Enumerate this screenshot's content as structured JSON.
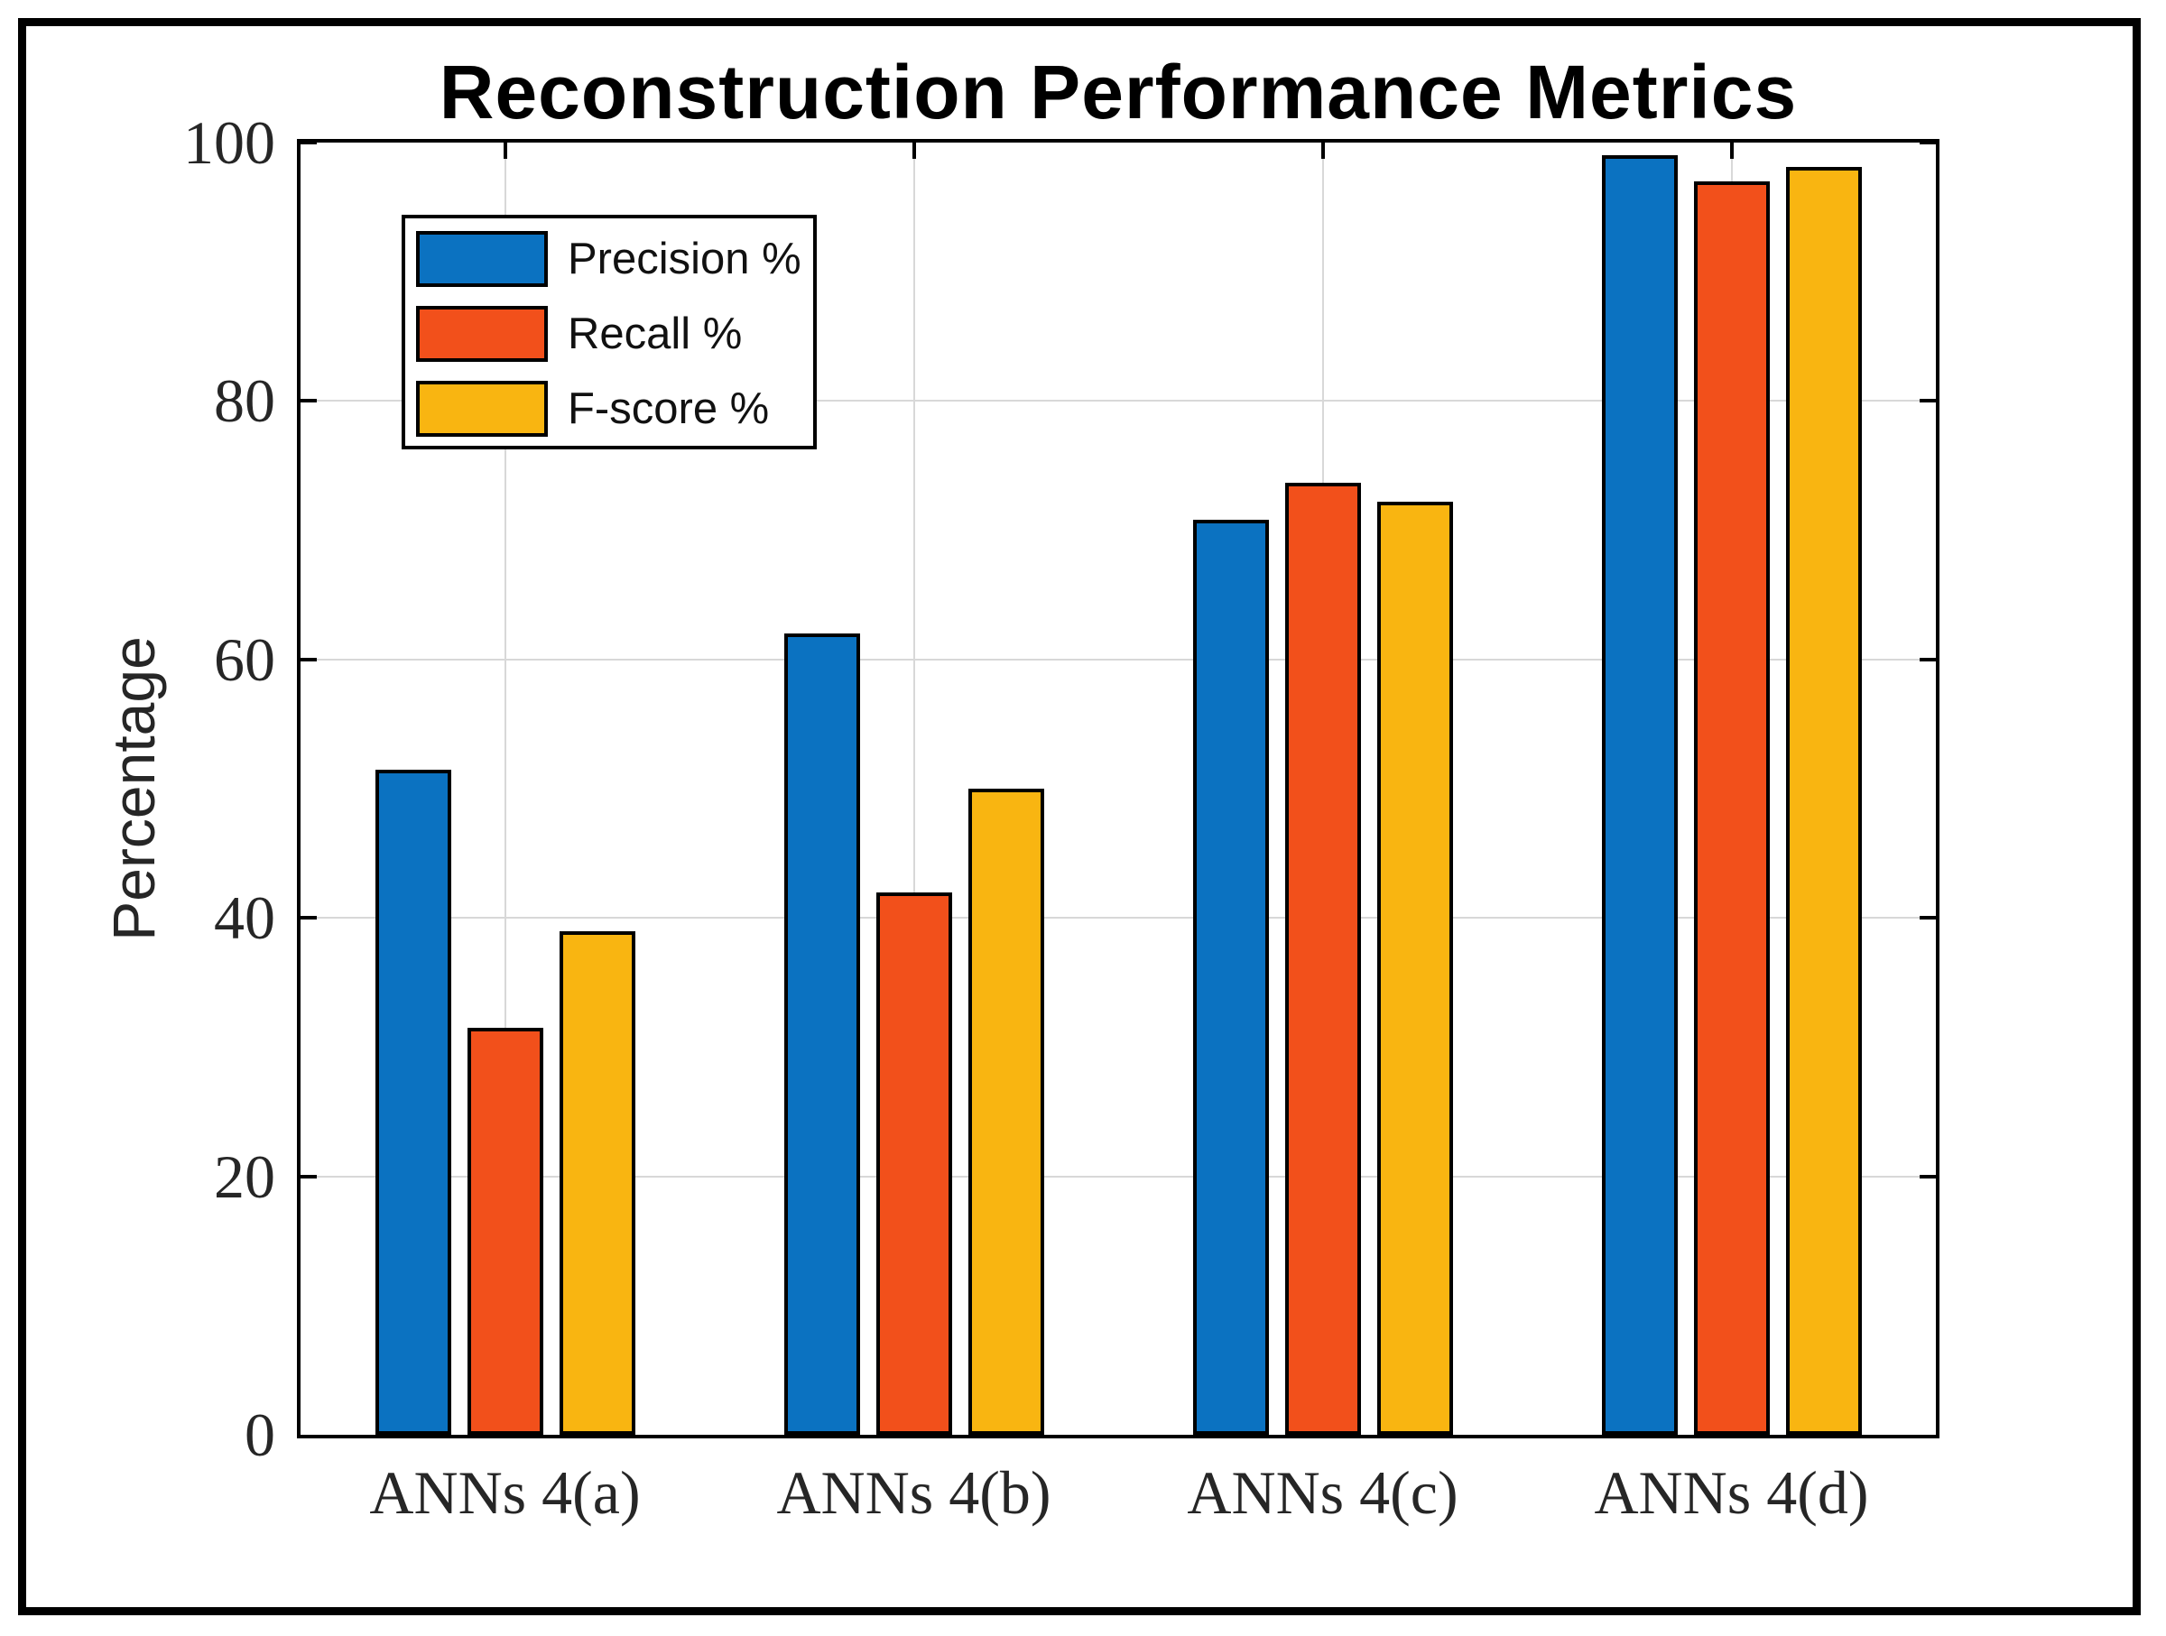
{
  "figure": {
    "title": "Reconstruction Performance Metrics",
    "ylabel": "Percentage"
  },
  "chart_data": {
    "type": "bar",
    "title": "Reconstruction Performance Metrics",
    "xlabel": "",
    "ylabel": "Percentage",
    "categories": [
      "ANNs 4(a)",
      "ANNs 4(b)",
      "ANNs 4(c)",
      "ANNs 4(d)"
    ],
    "series": [
      {
        "name": "Precision %",
        "color": "#0B72C1",
        "values": [
          51.5,
          62,
          70.8,
          99
        ]
      },
      {
        "name": "Recall %",
        "color": "#F2501B",
        "values": [
          31.5,
          42,
          73.7,
          97
        ]
      },
      {
        "name": "F-score %",
        "color": "#F9B511",
        "values": [
          39,
          50,
          72.2,
          98.1
        ]
      }
    ],
    "ylim": [
      0,
      100
    ],
    "yticks": [
      0,
      20,
      40,
      60,
      80,
      100
    ],
    "grid": true,
    "legend_position": "upper-left",
    "styles": {
      "grid_color": "#d8d8d8",
      "axis_color": "#000000",
      "bar_edge_color": "#000000",
      "tick_label_color": "#262626"
    }
  }
}
